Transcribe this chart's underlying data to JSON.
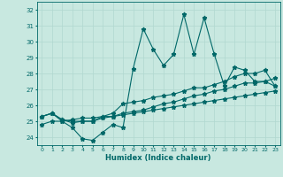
{
  "xlabel": "Humidex (Indice chaleur)",
  "xlim": [
    -0.5,
    23.5
  ],
  "ylim": [
    23.5,
    32.5
  ],
  "yticks": [
    24,
    25,
    26,
    27,
    28,
    29,
    30,
    31,
    32
  ],
  "xticks": [
    0,
    1,
    2,
    3,
    4,
    5,
    6,
    7,
    8,
    9,
    10,
    11,
    12,
    13,
    14,
    15,
    16,
    17,
    18,
    19,
    20,
    21,
    22,
    23
  ],
  "bg_color": "#c8e8e0",
  "grid_color": "#b0d8d0",
  "line_color": "#006868",
  "line1_x": [
    0,
    1,
    2,
    3,
    4,
    5,
    6,
    7,
    8,
    9,
    10,
    11,
    12,
    13,
    14,
    15,
    16,
    17,
    18,
    19,
    20,
    21,
    22,
    23
  ],
  "line1_y": [
    25.3,
    25.5,
    25.0,
    24.6,
    23.9,
    23.8,
    24.3,
    24.8,
    24.6,
    28.3,
    30.8,
    29.5,
    28.5,
    29.2,
    31.7,
    29.2,
    31.5,
    29.2,
    27.2,
    28.4,
    28.2,
    27.5,
    27.5,
    27.2
  ],
  "line2_x": [
    0,
    1,
    2,
    3,
    4,
    5,
    6,
    7,
    8,
    9,
    10,
    11,
    12,
    13,
    14,
    15,
    16,
    17,
    18,
    19,
    20,
    21,
    22,
    23
  ],
  "line2_y": [
    25.3,
    25.5,
    25.1,
    25.0,
    25.0,
    25.0,
    25.3,
    25.5,
    26.1,
    26.2,
    26.3,
    26.5,
    26.6,
    26.7,
    26.9,
    27.1,
    27.1,
    27.3,
    27.5,
    27.8,
    28.0,
    28.0,
    28.2,
    27.2
  ],
  "line3_x": [
    0,
    1,
    2,
    3,
    4,
    5,
    6,
    7,
    8,
    9,
    10,
    11,
    12,
    13,
    14,
    15,
    16,
    17,
    18,
    19,
    20,
    21,
    22,
    23
  ],
  "line3_y": [
    25.3,
    25.5,
    25.1,
    24.9,
    25.0,
    25.0,
    25.2,
    25.3,
    25.5,
    25.6,
    25.7,
    25.9,
    26.1,
    26.2,
    26.4,
    26.6,
    26.7,
    26.9,
    27.0,
    27.2,
    27.4,
    27.4,
    27.5,
    27.7
  ],
  "line4_x": [
    0,
    1,
    2,
    3,
    4,
    5,
    6,
    7,
    8,
    9,
    10,
    11,
    12,
    13,
    14,
    15,
    16,
    17,
    18,
    19,
    20,
    21,
    22,
    23
  ],
  "line4_y": [
    24.8,
    25.0,
    25.0,
    25.1,
    25.2,
    25.2,
    25.3,
    25.3,
    25.4,
    25.5,
    25.6,
    25.7,
    25.8,
    25.9,
    26.0,
    26.1,
    26.2,
    26.3,
    26.4,
    26.5,
    26.6,
    26.7,
    26.8,
    26.9
  ]
}
